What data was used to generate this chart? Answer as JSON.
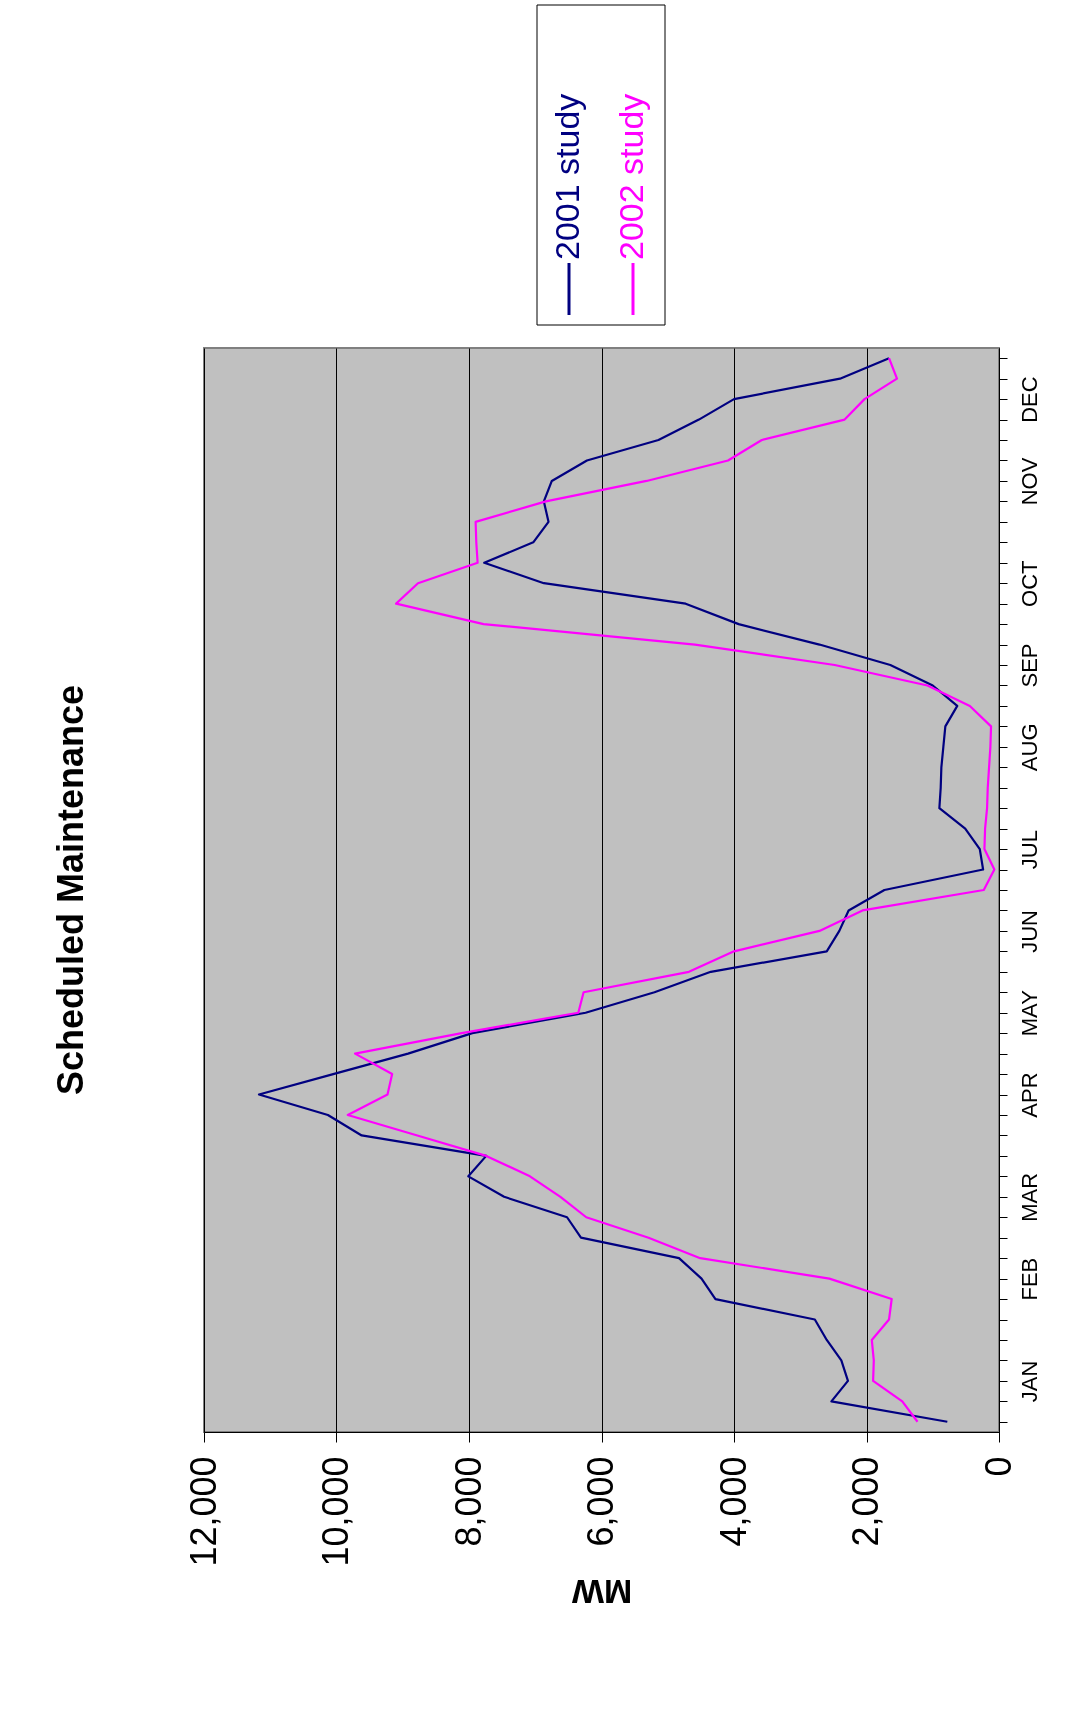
{
  "chart_data": {
    "type": "line",
    "orientation": "horizontal",
    "title": "Scheduled Maintenance",
    "xlabel": "MW",
    "xlim": [
      12000,
      0
    ],
    "xticks": [
      0,
      {
        "value": 2000,
        "label": "2,000"
      },
      {
        "value": 4000,
        "label": "4,000"
      },
      {
        "value": 6000,
        "label": "6,000"
      },
      {
        "value": 8000,
        "label": "8,000"
      },
      {
        "value": 10000,
        "label": "10,000"
      },
      {
        "value": 12000,
        "label": "12,000"
      }
    ],
    "categories": [
      null,
      null,
      "DEC",
      null,
      null,
      null,
      "NOV",
      null,
      null,
      null,
      null,
      "OCT",
      null,
      null,
      null,
      "SEP",
      null,
      null,
      null,
      "AUG",
      null,
      null,
      null,
      null,
      "JUL",
      null,
      null,
      null,
      "JUN",
      null,
      null,
      null,
      "MAY",
      null,
      null,
      null,
      "APR",
      null,
      null,
      null,
      null,
      "MAR",
      null,
      null,
      null,
      "FEB",
      null,
      null,
      null,
      null,
      "JAN",
      null,
      null
    ],
    "grid": "x",
    "legend": "top right",
    "series": [
      {
        "name": "2001 study",
        "color": "#000080",
        "values": [
          1660,
          2400,
          4000,
          4530,
          5140,
          6220,
          6750,
          6870,
          6800,
          7030,
          7770,
          6870,
          4730,
          3930,
          2710,
          1640,
          1000,
          630,
          810,
          840,
          870,
          880,
          900,
          510,
          290,
          240,
          1730,
          2270,
          2410,
          2600,
          4350,
          5200,
          6240,
          7950,
          8920,
          10050,
          11170,
          10130,
          9620,
          7740,
          8010,
          7470,
          6520,
          6310,
          4830,
          4490,
          4280,
          2780,
          2600,
          2380,
          2280,
          2530,
          780
        ]
      },
      {
        "name": "2002 study",
        "color": "#ff00ff",
        "values": [
          1660,
          1540,
          2030,
          2330,
          3580,
          4090,
          5320,
          6840,
          7900,
          7890,
          7870,
          8770,
          9100,
          7780,
          4590,
          2480,
          1080,
          440,
          120,
          130,
          150,
          170,
          180,
          210,
          220,
          70,
          230,
          2060,
          2710,
          4000,
          4680,
          6270,
          6350,
          8110,
          9720,
          9160,
          9230,
          9830,
          8780,
          7740,
          7080,
          6620,
          6230,
          5290,
          4510,
          2560,
          1620,
          1660,
          1920,
          1890,
          1900,
          1460,
          1230
        ]
      }
    ]
  }
}
